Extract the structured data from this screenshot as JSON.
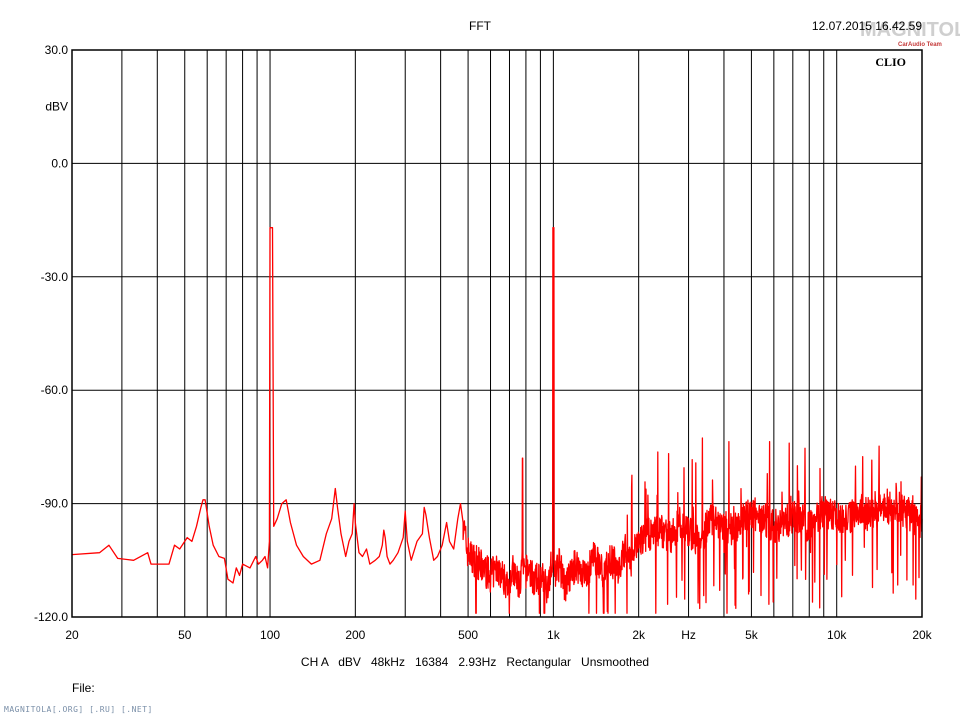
{
  "header": {
    "title": "FFT",
    "timestamp": "12.07.2015 16.42.59",
    "logo_text": "MAGNITOLA",
    "logo_sub": "CarAudio Team",
    "brand": "CLIO"
  },
  "footer": {
    "settings": "CH A   dBV   48kHz   16384   2.93Hz   Rectangular   Unsmoothed",
    "file_label": "File:",
    "watermark": "MAGNITOLA[.ORG] [.RU] [.NET]"
  },
  "colors": {
    "trace": "#ff0000",
    "grid": "#000000"
  },
  "chart_data": {
    "type": "line",
    "title": "FFT",
    "xlabel": "Hz",
    "ylabel": "dBV",
    "x_scale": "log",
    "xlim": [
      20,
      20000
    ],
    "ylim": [
      -120,
      30
    ],
    "grid": true,
    "x_tick_labels": [
      {
        "v": 20,
        "label": "20"
      },
      {
        "v": 50,
        "label": "50"
      },
      {
        "v": 100,
        "label": "100"
      },
      {
        "v": 200,
        "label": "200"
      },
      {
        "v": 500,
        "label": "500"
      },
      {
        "v": 1000,
        "label": "1k"
      },
      {
        "v": 2000,
        "label": "2k"
      },
      {
        "v": 3000,
        "label": "Hz"
      },
      {
        "v": 5000,
        "label": "5k"
      },
      {
        "v": 10000,
        "label": "10k"
      },
      {
        "v": 20000,
        "label": "20k"
      }
    ],
    "y_tick_labels": [
      {
        "v": 30,
        "label": "30.0"
      },
      {
        "v": 15,
        "label": "dBV"
      },
      {
        "v": 0,
        "label": "0.0"
      },
      {
        "v": -30,
        "label": "-30.0"
      },
      {
        "v": -60,
        "label": "-60.0"
      },
      {
        "v": -90,
        "label": "-90.0"
      },
      {
        "v": -120,
        "label": "-120.0"
      }
    ],
    "series": [
      {
        "points": [
          [
            20,
            -103.5
          ],
          [
            25,
            -103
          ],
          [
            27,
            -101
          ],
          [
            29,
            -104.5
          ],
          [
            33,
            -105
          ],
          [
            37,
            -103
          ],
          [
            38,
            -106
          ],
          [
            44,
            -106
          ],
          [
            46,
            -101
          ],
          [
            48,
            -102
          ],
          [
            51,
            -99
          ],
          [
            53,
            -100
          ],
          [
            55,
            -96
          ],
          [
            57,
            -91
          ],
          [
            58,
            -89
          ],
          [
            59,
            -89
          ],
          [
            61,
            -96
          ],
          [
            63,
            -101
          ],
          [
            66,
            -104
          ],
          [
            69,
            -104.5
          ],
          [
            71,
            -110
          ],
          [
            74,
            -111
          ],
          [
            76,
            -107
          ],
          [
            78,
            -109
          ],
          [
            80,
            -106
          ],
          [
            85,
            -107
          ],
          [
            89,
            -104
          ],
          [
            91,
            -106
          ],
          [
            94,
            -105
          ],
          [
            96,
            -104
          ],
          [
            98,
            -107
          ],
          [
            99.5,
            -100
          ],
          [
            100,
            -17
          ],
          [
            102,
            -17
          ],
          [
            103,
            -96
          ],
          [
            106,
            -94
          ],
          [
            110,
            -90
          ],
          [
            114,
            -89
          ],
          [
            118,
            -95
          ],
          [
            124,
            -101
          ],
          [
            131,
            -104
          ],
          [
            140,
            -106
          ],
          [
            150,
            -105
          ],
          [
            158,
            -98
          ],
          [
            165,
            -94
          ],
          [
            170,
            -86
          ],
          [
            173,
            -91
          ],
          [
            178,
            -98
          ],
          [
            185,
            -104
          ],
          [
            190,
            -100
          ],
          [
            195,
            -98
          ],
          [
            198,
            -90
          ],
          [
            200,
            -95
          ],
          [
            206,
            -103
          ],
          [
            212,
            -104
          ],
          [
            219,
            -102
          ],
          [
            225,
            -106
          ],
          [
            235,
            -105
          ],
          [
            243,
            -104
          ],
          [
            249,
            -101
          ],
          [
            252,
            -97
          ],
          [
            255,
            -99
          ],
          [
            259,
            -104
          ],
          [
            265,
            -106
          ],
          [
            272,
            -105
          ],
          [
            283,
            -103
          ],
          [
            295,
            -99
          ],
          [
            300,
            -92
          ],
          [
            305,
            -100
          ],
          [
            315,
            -105
          ],
          [
            330,
            -100
          ],
          [
            345,
            -98
          ],
          [
            350,
            -91
          ],
          [
            355,
            -93
          ],
          [
            365,
            -99
          ],
          [
            378,
            -105
          ],
          [
            390,
            -104
          ],
          [
            405,
            -101
          ],
          [
            420,
            -95
          ],
          [
            430,
            -100
          ],
          [
            445,
            -102
          ],
          [
            460,
            -94
          ],
          [
            470,
            -90
          ],
          [
            480,
            -95
          ],
          [
            495,
            -102
          ],
          [
            510,
            -104
          ],
          [
            530,
            -105
          ],
          [
            560,
            -107
          ],
          [
            600,
            -109
          ],
          [
            640,
            -107
          ],
          [
            680,
            -111
          ],
          [
            720,
            -108
          ],
          [
            760,
            -112
          ],
          [
            775,
            -107
          ],
          [
            778,
            -78
          ],
          [
            782,
            -109
          ],
          [
            820,
            -107
          ],
          [
            860,
            -111
          ],
          [
            900,
            -109
          ],
          [
            950,
            -112
          ],
          [
            985,
            -106
          ],
          [
            995,
            -110
          ],
          [
            998,
            -17
          ],
          [
            1002,
            -17
          ],
          [
            1006,
            -108
          ],
          [
            1050,
            -106
          ],
          [
            1100,
            -112
          ],
          [
            1200,
            -106
          ],
          [
            1300,
            -109
          ],
          [
            1400,
            -104
          ],
          [
            1500,
            -108
          ],
          [
            1600,
            -105
          ],
          [
            1700,
            -107
          ],
          [
            1800,
            -102
          ],
          [
            1850,
            -106
          ],
          [
            2000,
            -100
          ],
          [
            2200,
            -98
          ],
          [
            2400,
            -97
          ],
          [
            2600,
            -99
          ],
          [
            2800,
            -95
          ],
          [
            3000,
            -98
          ],
          [
            3300,
            -100
          ],
          [
            3600,
            -94
          ],
          [
            3900,
            -96
          ],
          [
            4200,
            -97
          ],
          [
            4600,
            -95
          ],
          [
            5000,
            -92
          ],
          [
            5500,
            -94
          ],
          [
            6000,
            -96
          ],
          [
            6600,
            -95
          ],
          [
            7200,
            -93
          ],
          [
            8000,
            -96
          ],
          [
            9000,
            -92
          ],
          [
            10000,
            -93
          ],
          [
            11000,
            -94
          ],
          [
            12000,
            -91
          ],
          [
            13000,
            -93
          ],
          [
            14500,
            -92
          ],
          [
            16000,
            -90
          ],
          [
            18000,
            -93
          ],
          [
            20000,
            -95
          ]
        ]
      }
    ]
  }
}
